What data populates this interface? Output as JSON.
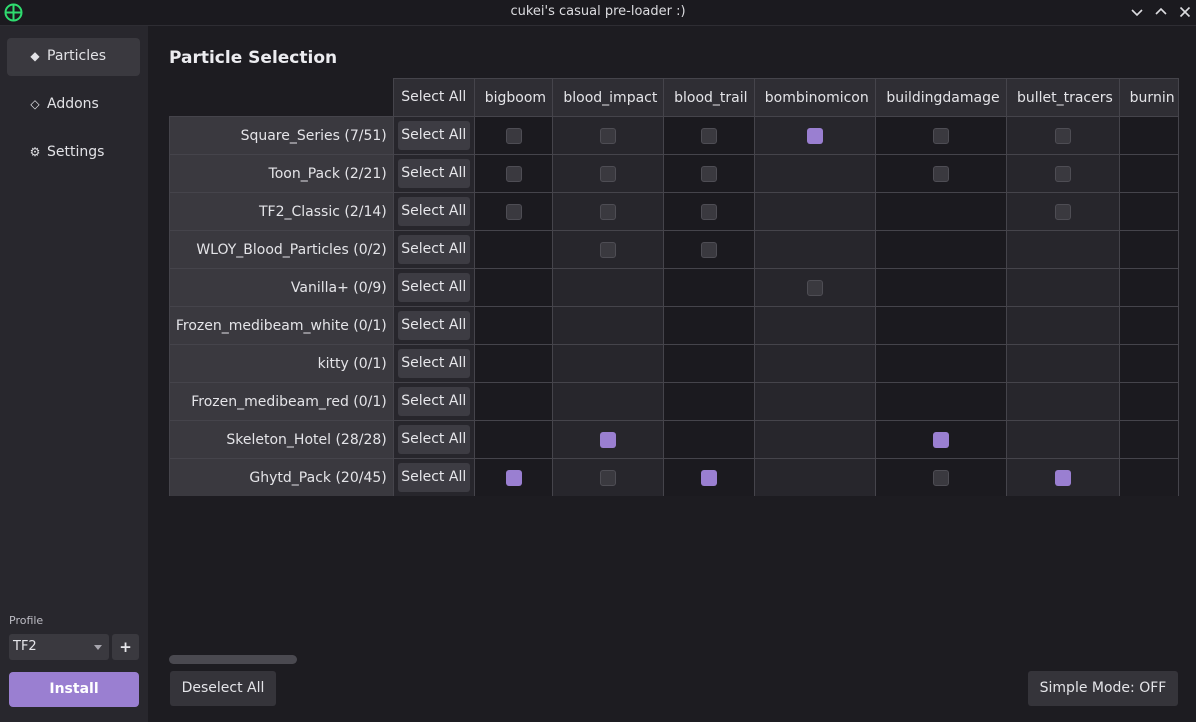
{
  "window": {
    "title": "cukei's casual pre-loader :)"
  },
  "sidebar": {
    "items": [
      {
        "label": "Particles",
        "icon": "diamond-filled-icon",
        "glyph": "◆",
        "active": true
      },
      {
        "label": "Addons",
        "icon": "diamond-outline-icon",
        "glyph": "◇",
        "active": false
      },
      {
        "label": "Settings",
        "icon": "gear-icon",
        "glyph": "⚙",
        "active": false
      }
    ],
    "profile_label": "Profile",
    "profile_value": "TF2",
    "add_profile_label": "+",
    "install_label": "Install"
  },
  "main": {
    "title": "Particle Selection",
    "select_all_label": "Select All",
    "columns": [
      "bigboom",
      "blood_impact",
      "blood_trail",
      "bombinomicon",
      "buildingdamage",
      "bullet_tracers",
      "burnin"
    ],
    "rows": [
      {
        "name": "Square_Series (7/51)",
        "cells": [
          "off",
          "off",
          "off",
          "on",
          "off",
          "off",
          ""
        ]
      },
      {
        "name": "Toon_Pack (2/21)",
        "cells": [
          "off",
          "off",
          "off",
          "",
          "off",
          "off",
          ""
        ]
      },
      {
        "name": "TF2_Classic (2/14)",
        "cells": [
          "off",
          "off",
          "off",
          "",
          "",
          "off",
          ""
        ]
      },
      {
        "name": "WLOY_Blood_Particles (0/2)",
        "cells": [
          "",
          "off",
          "off",
          "",
          "",
          "",
          ""
        ]
      },
      {
        "name": "Vanilla+ (0/9)",
        "cells": [
          "",
          "",
          "",
          "off",
          "",
          "",
          ""
        ]
      },
      {
        "name": "Frozen_medibeam_white (0/1)",
        "cells": [
          "",
          "",
          "",
          "",
          "",
          "",
          ""
        ]
      },
      {
        "name": "kitty (0/1)",
        "cells": [
          "",
          "",
          "",
          "",
          "",
          "",
          ""
        ]
      },
      {
        "name": "Frozen_medibeam_red (0/1)",
        "cells": [
          "",
          "",
          "",
          "",
          "",
          "",
          ""
        ]
      },
      {
        "name": "Skeleton_Hotel (28/28)",
        "cells": [
          "",
          "on",
          "",
          "",
          "on",
          "",
          ""
        ]
      },
      {
        "name": "Ghytd_Pack (20/45)",
        "cells": [
          "on",
          "off",
          "on",
          "",
          "off",
          "on",
          ""
        ]
      }
    ],
    "deselect_all_label": "Deselect All",
    "simple_mode_label": "Simple Mode: OFF"
  },
  "colors": {
    "accent": "#9a7fd1",
    "logo": "#2fdc6f"
  }
}
